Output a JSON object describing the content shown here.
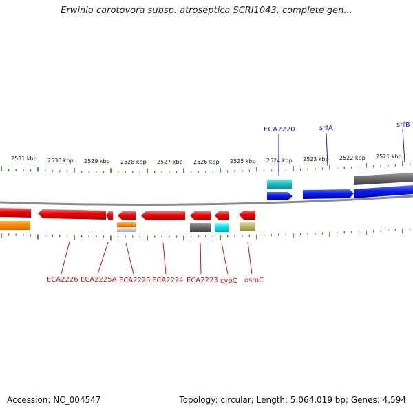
{
  "title": "Erwinia carotovora subsp. atroseptica SCRI1043, complete gen...",
  "footer": {
    "accession": "Accession: NC_004547",
    "summary": "Topology: circular; Length: 5,064,019 bp; Genes: 4,594"
  },
  "ruler": {
    "labels": [
      "2531 kbp",
      "2530 kbp",
      "2529 kbp",
      "2528 kbp",
      "2527 kbp",
      "2526 kbp",
      "2525 kbp",
      "2524 kbp",
      "2523 kbp",
      "2522 kbp",
      "2521 kbp"
    ]
  },
  "colors": {
    "forward_label": "#1a1acc",
    "reverse_label": "#cc1111",
    "tick": "#2e7d1e",
    "backbone": "#8a8a8a"
  },
  "genes_forward": [
    {
      "name": "ECA2220"
    },
    {
      "name": "srfA"
    },
    {
      "name": "srfB"
    }
  ],
  "genes_reverse": [
    {
      "name": "ECA2226"
    },
    {
      "name": "ECA2225A"
    },
    {
      "name": "ECA2225"
    },
    {
      "name": "ECA2224"
    },
    {
      "name": "ECA2223"
    },
    {
      "name": "cybC"
    },
    {
      "name": "osmC"
    }
  ]
}
